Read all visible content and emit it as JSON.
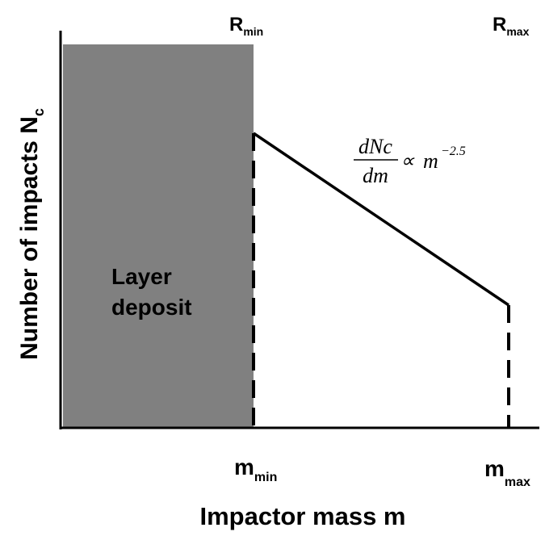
{
  "diagram": {
    "x_axis_label": "Impactor mass m",
    "y_axis_label": {
      "text": "Number of impacts N",
      "subscript": "c"
    },
    "top_labels": [
      {
        "text": "R",
        "subscript": "min"
      },
      {
        "text": "R",
        "subscript": "max"
      }
    ],
    "bottom_labels": [
      {
        "text": "m",
        "subscript": "min"
      },
      {
        "text": "m",
        "subscript": "max"
      }
    ],
    "region_label": [
      "Layer",
      "deposit"
    ],
    "formula": {
      "numerator": "dNc",
      "denominator": "dm",
      "relation": "∝",
      "base": "m",
      "exponent": "−2.5"
    }
  }
}
